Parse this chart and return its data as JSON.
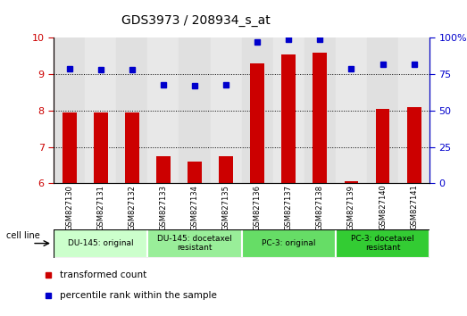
{
  "title": "GDS3973 / 208934_s_at",
  "samples": [
    "GSM827130",
    "GSM827131",
    "GSM827132",
    "GSM827133",
    "GSM827134",
    "GSM827135",
    "GSM827136",
    "GSM827137",
    "GSM827138",
    "GSM827139",
    "GSM827140",
    "GSM827141"
  ],
  "bar_values": [
    7.95,
    7.95,
    7.95,
    6.75,
    6.6,
    6.75,
    9.3,
    9.55,
    9.6,
    6.05,
    8.05,
    8.1
  ],
  "dot_values": [
    79,
    78,
    78,
    68,
    67,
    68,
    97,
    99,
    99,
    79,
    82,
    82
  ],
  "bar_color": "#cc0000",
  "dot_color": "#0000cc",
  "ylim_left": [
    6,
    10
  ],
  "ylim_right": [
    0,
    100
  ],
  "yticks_left": [
    6,
    7,
    8,
    9,
    10
  ],
  "yticks_right": [
    0,
    25,
    50,
    75,
    100
  ],
  "ytick_labels_right": [
    "0",
    "25",
    "50",
    "75",
    "100%"
  ],
  "grid_ticks": [
    7,
    8,
    9
  ],
  "groups": [
    {
      "label": "DU-145: original",
      "start": 0,
      "end": 3,
      "color": "#ccffcc"
    },
    {
      "label": "DU-145: docetaxel\nresistant",
      "start": 3,
      "end": 6,
      "color": "#99ee99"
    },
    {
      "label": "PC-3: original",
      "start": 6,
      "end": 9,
      "color": "#66dd66"
    },
    {
      "label": "PC-3: docetaxel\nresistant",
      "start": 9,
      "end": 12,
      "color": "#33cc33"
    }
  ],
  "cell_line_label": "cell line",
  "legend_bar_label": "transformed count",
  "legend_dot_label": "percentile rank within the sample",
  "background_color": "#ffffff",
  "bar_width": 0.45,
  "col_bg_color": "#d8d8d8",
  "plot_bg": "#ffffff"
}
